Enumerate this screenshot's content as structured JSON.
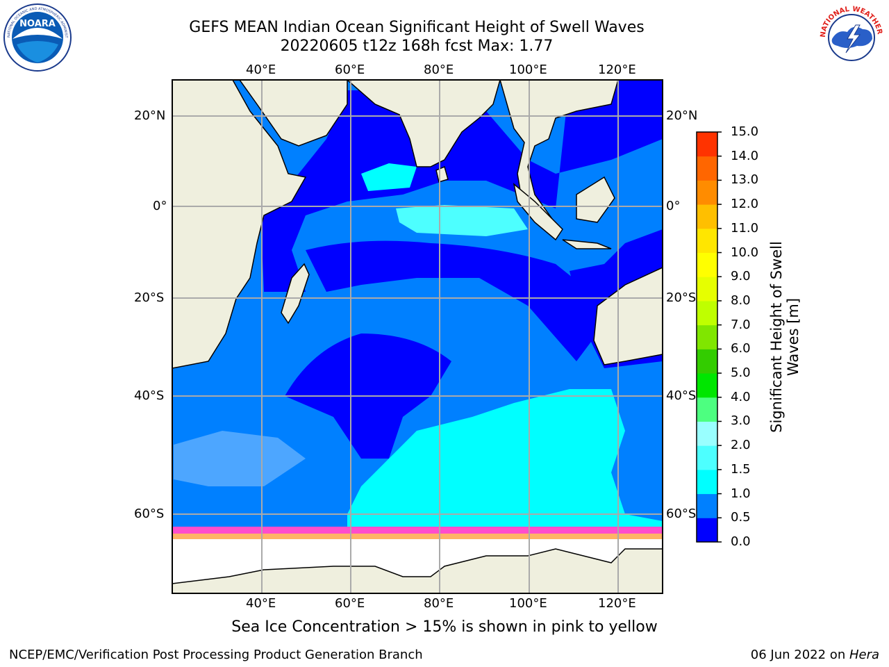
{
  "header": {
    "title_line1": "GEFS MEAN Indian Ocean Significant Height of Swell Waves",
    "title_line2": "20220605 t12z 168h fcst   Max: 1.77"
  },
  "logos": {
    "left": {
      "name": "NOARA",
      "ring_text": "NATIONAL OCEANIC AND ATMOSPHERIC ADMINISTRATION · U.S. DEPARTMENT OF COMMERCE"
    },
    "right": {
      "ring_text": "NATIONAL WEATHER SERVICE"
    }
  },
  "map": {
    "lon_labels": [
      "40°E",
      "60°E",
      "80°E",
      "100°E",
      "120°E"
    ],
    "lat_labels": [
      "20°N",
      "0°",
      "20°S",
      "40°S",
      "60°S"
    ],
    "colors": {
      "land": "#efefde",
      "ocean_low": "#0000ff",
      "ocean_mid": "#0080ff",
      "ocean_high": "#00ffff",
      "ice": "#ffffff",
      "grid": "#aaaaaa"
    }
  },
  "colorbar": {
    "ticks": [
      "0.0",
      "0.5",
      "1.0",
      "1.5",
      "2.0",
      "3.0",
      "4.0",
      "5.0",
      "6.0",
      "7.0",
      "8.0",
      "9.0",
      "10.0",
      "11.0",
      "12.0",
      "13.0",
      "14.0",
      "15.0"
    ],
    "colors": [
      "#0000ff",
      "#0080ff",
      "#00ffff",
      "#4dffff",
      "#99ffff",
      "#4dff80",
      "#00e600",
      "#33cc00",
      "#80e600",
      "#bfff00",
      "#e6ff00",
      "#ffff00",
      "#ffe600",
      "#ffbf00",
      "#ff8c00",
      "#ff6600",
      "#ff3300",
      "#ff0000"
    ],
    "label": "Significant Height of Swell Waves [m]"
  },
  "notes": {
    "ice": "Sea Ice Concentration > 15% is shown in pink to yellow"
  },
  "footer": {
    "left": "NCEP/EMC/Verification Post Processing Product Generation Branch",
    "date": "06 Jun 2022 on ",
    "machine": "Hera"
  }
}
